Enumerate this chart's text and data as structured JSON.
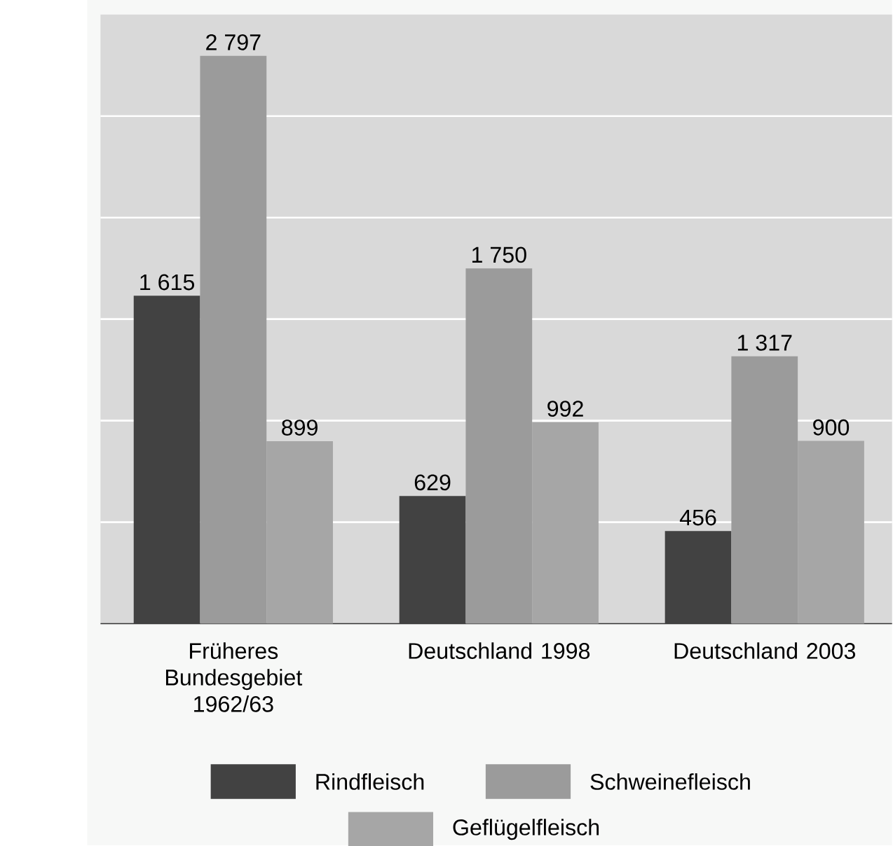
{
  "chart_data": {
    "type": "bar",
    "categories": [
      "Früheres Bundesgebiet 1962/63",
      "Deutschland 1998",
      "Deutschland 2003"
    ],
    "series": [
      {
        "name": "Rindfleisch",
        "color": "#424242",
        "values": [
          1615,
          629,
          456
        ],
        "value_labels": [
          "1 615",
          "629",
          "456"
        ]
      },
      {
        "name": "Schweinefleisch",
        "color": "#9b9b9b",
        "values": [
          2797,
          1750,
          1317
        ],
        "value_labels": [
          "2 797",
          "1 750",
          "1 317"
        ]
      },
      {
        "name": "Geflügelfleisch",
        "color": "#a6a6a6",
        "values": [
          899,
          992,
          900
        ],
        "value_labels": [
          "899",
          "992",
          "900"
        ]
      }
    ],
    "ylim": [
      0,
      3000
    ],
    "yticks": [
      {
        "value": 500,
        "label": null
      },
      {
        "value": 1000,
        "label": null
      },
      {
        "value": 1500,
        "label": null
      },
      {
        "value": 2000,
        "label": null
      },
      {
        "value": 2500,
        "label": null
      }
    ],
    "tick_labels": "x",
    "grid": "y",
    "legend": "bottom"
  }
}
